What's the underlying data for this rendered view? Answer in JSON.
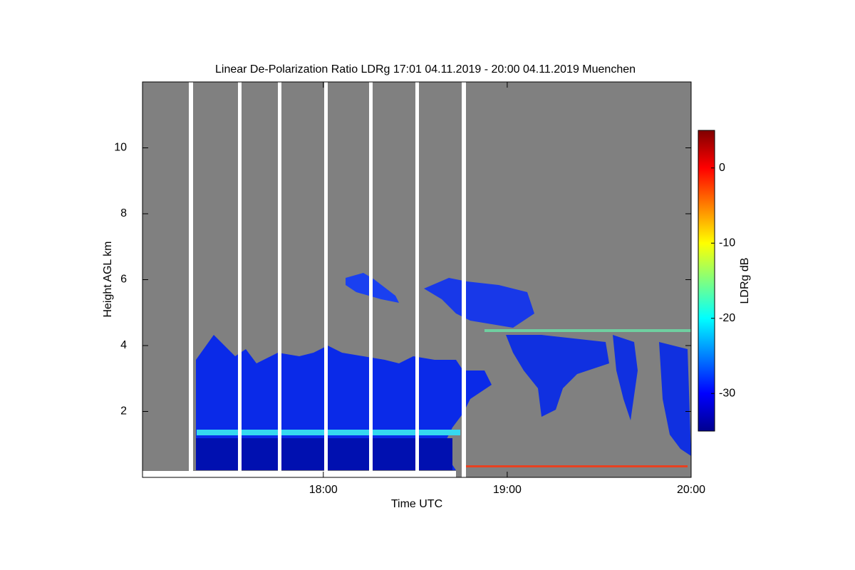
{
  "chart_data": {
    "type": "heatmap",
    "title": "Linear De-Polarization Ratio LDRg   17:01 04.11.2019 - 20:00 04.11.2019 Muenchen",
    "x_label": "Time UTC",
    "y_label": "Height AGL km",
    "colorbar_label": "LDRg dB",
    "xlim": [
      17.0167,
      20
    ],
    "xticks": [
      {
        "value": 18,
        "label": "18:00"
      },
      {
        "value": 19,
        "label": "19:00"
      },
      {
        "value": 20,
        "label": "20:00"
      }
    ],
    "ylim": [
      0,
      12
    ],
    "yticks": [
      2,
      4,
      6,
      8,
      10
    ],
    "zlim": [
      -35,
      5
    ],
    "zticks": [
      0,
      -10,
      -20,
      -30
    ]
  }
}
